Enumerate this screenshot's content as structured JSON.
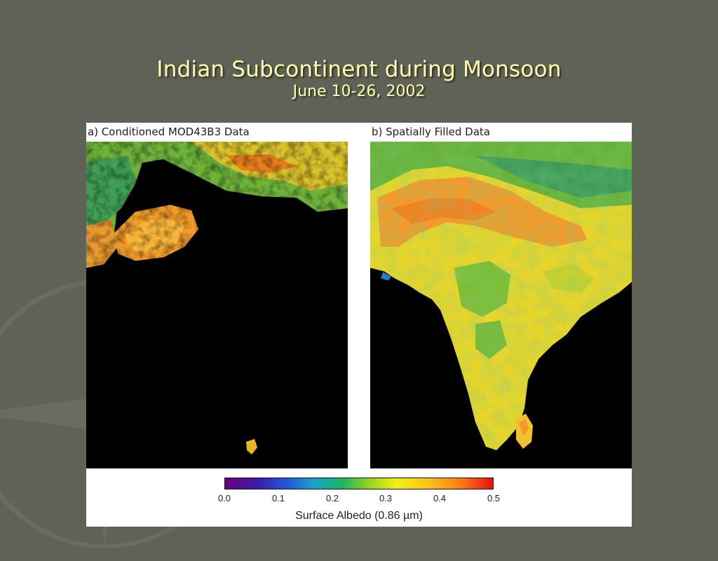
{
  "slide": {
    "title": "Indian Subcontinent during Monsoon",
    "subtitle": "June 10-26, 2002"
  },
  "figure": {
    "panel_a_label": "a) Conditioned MOD43B3 Data",
    "panel_b_label": "b) Spatially Filled Data",
    "colorbar": {
      "ticks": [
        "0.0",
        "0.1",
        "0.2",
        "0.3",
        "0.4",
        "0.5"
      ],
      "label": "Surface Albedo (0.86 µm)"
    }
  }
}
